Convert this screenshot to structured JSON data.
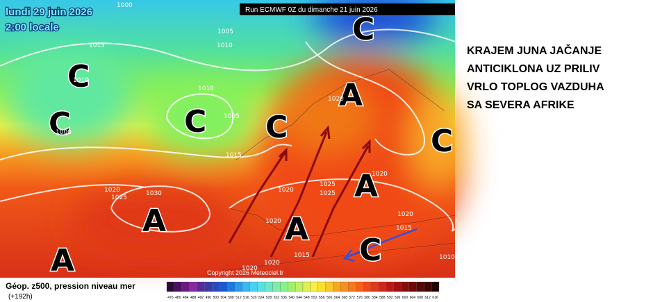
{
  "header": {
    "date": "lundi 29 juin 2026",
    "time": "2:00 locale",
    "run": "Run ECMWF 0Z du dimanche 21 juin 2026"
  },
  "map": {
    "centers": [
      "C",
      "C",
      "C",
      "C",
      "C",
      "A",
      "C",
      "A",
      "A",
      "A",
      "A",
      "C"
    ],
    "isobars": [
      "1000",
      "1005",
      "1010",
      "1015",
      "1010",
      "1005",
      "1015",
      "1020",
      "1020",
      "1025",
      "1020",
      "1025",
      "1030",
      "1020",
      "1025",
      "1020",
      "1020",
      "1015",
      "1020",
      "1020",
      "1015",
      "1010",
      "1000",
      "1010"
    ]
  },
  "copyright": "Copyright 2026 Meteociel.fr",
  "annotation": {
    "lines": [
      "KRAJEM JUNA JAČANJE",
      "ANTICIKLONA UZ PRILIV",
      "VRLO TOPLOG VAZDUHA",
      "SA SEVERA AFRIKE"
    ]
  },
  "footer": {
    "field": "Géop. z500, pression niveau mer",
    "lead": "(+192h)"
  },
  "colorbar": {
    "ticks": [
      476,
      480,
      484,
      488,
      492,
      496,
      500,
      504,
      508,
      512,
      516,
      520,
      524,
      528,
      532,
      536,
      540,
      544,
      548,
      552,
      556,
      560,
      564,
      568,
      572,
      576,
      580,
      584,
      588,
      592,
      596,
      600,
      604,
      608,
      612,
      616
    ],
    "colors": [
      "#2a0a3a",
      "#4a1060",
      "#6a1a80",
      "#8a2aa0",
      "#5a2a9a",
      "#3a3aaa",
      "#2a4ac0",
      "#1a5ad0",
      "#1a7ae0",
      "#2a9aee",
      "#3ab8f0",
      "#4ad0f0",
      "#5ae0e0",
      "#6ae8c8",
      "#7aeeaa",
      "#8af08a",
      "#a0f070",
      "#c0f060",
      "#e0f050",
      "#f8f040",
      "#f8e030",
      "#f8c828",
      "#f8a820",
      "#f89018",
      "#f87818",
      "#f86018",
      "#f04818",
      "#e03818",
      "#d02818",
      "#b81818",
      "#a01010",
      "#880c0c",
      "#700808",
      "#580606",
      "#400404",
      "#200202"
    ]
  }
}
